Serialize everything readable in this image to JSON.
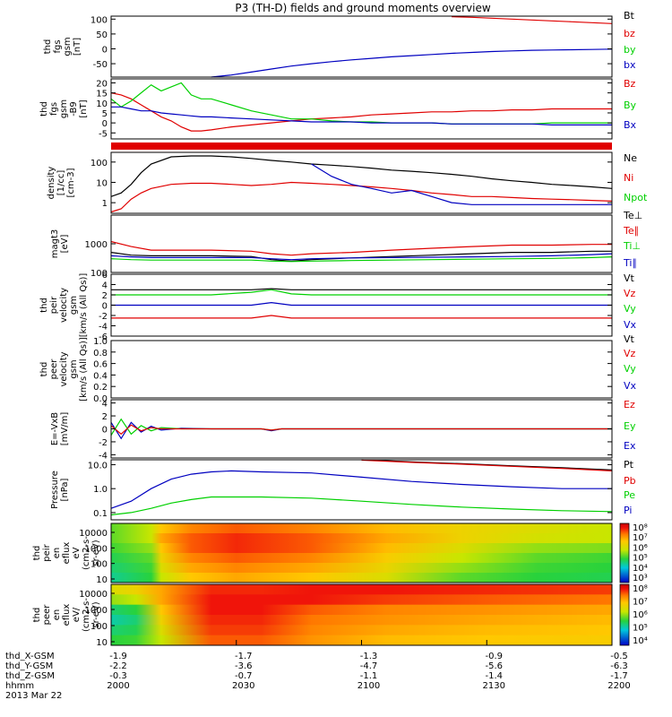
{
  "title": "P3 (TH-D) fields and ground moments overview",
  "colors": {
    "black": "#000000",
    "red": "#e00000",
    "green": "#00d000",
    "blue": "#0000c0"
  },
  "chart_data": [
    {
      "type": "line",
      "ylabel": [
        "thd",
        "fgs",
        "gsm",
        "[nT]"
      ],
      "yticks": [
        "100",
        "50",
        "0",
        "-50"
      ],
      "ylim": [
        -95,
        110
      ],
      "ytick_values": [
        100,
        50,
        0,
        -50
      ],
      "x": [
        0,
        8,
        12,
        16,
        20,
        24,
        28,
        32,
        36,
        40,
        44,
        48,
        52,
        56,
        60,
        64,
        68,
        72,
        76,
        80,
        84,
        88,
        92,
        96,
        100
      ],
      "legend": [
        "Bt",
        "bz",
        "by",
        "bx"
      ],
      "series": [
        {
          "color": "red",
          "values": [
            null,
            null,
            null,
            null,
            null,
            null,
            null,
            null,
            null,
            null,
            null,
            null,
            null,
            null,
            null,
            null,
            108,
            106,
            103,
            100,
            97,
            94,
            91,
            88,
            85
          ]
        },
        {
          "color": "blue",
          "values": [
            null,
            null,
            null,
            null,
            -95,
            -88,
            -78,
            -68,
            -58,
            -50,
            -43,
            -37,
            -32,
            -27,
            -23,
            -19,
            -15,
            -12,
            -9,
            -7,
            -5,
            -4,
            -3,
            -2,
            -1
          ]
        }
      ]
    },
    {
      "type": "line",
      "ylabel": [
        "thd",
        "fgs",
        "gsm",
        "-B9",
        "[nT]"
      ],
      "yticks": [
        "20",
        "15",
        "10",
        "5",
        "0",
        "-5"
      ],
      "ylim": [
        -8,
        22
      ],
      "ytick_values": [
        20,
        15,
        10,
        5,
        0,
        -5
      ],
      "x": [
        0,
        2,
        4,
        6,
        8,
        10,
        12,
        14,
        16,
        18,
        20,
        24,
        28,
        32,
        36,
        40,
        44,
        48,
        52,
        56,
        60,
        64,
        68,
        72,
        76,
        80,
        84,
        88,
        92,
        96,
        100
      ],
      "legend": [
        "Bz",
        "By",
        "Bx"
      ],
      "series": [
        {
          "color": "red",
          "values": [
            15,
            14,
            12,
            9,
            6,
            3,
            1,
            -2,
            -4,
            -4,
            -3.5,
            -2,
            -1,
            0,
            1,
            2,
            2.5,
            3,
            4,
            4.5,
            5,
            5.5,
            5.5,
            6,
            6,
            6.5,
            6.5,
            7,
            7,
            7,
            7
          ]
        },
        {
          "color": "green",
          "values": [
            12,
            8,
            11,
            15,
            19,
            16,
            18,
            20,
            14,
            12,
            12,
            9,
            6,
            4,
            2,
            2,
            1,
            0.5,
            0.5,
            0,
            0,
            0,
            -0.5,
            -0.5,
            -0.5,
            -0.5,
            -0.5,
            0,
            0,
            0,
            0
          ]
        },
        {
          "color": "blue",
          "values": [
            8,
            8,
            7,
            6,
            6,
            5,
            4.5,
            4,
            3.5,
            3,
            3,
            2.5,
            2,
            1.5,
            1,
            0.5,
            0.5,
            0.5,
            0,
            0,
            0,
            0,
            -0.5,
            -0.5,
            -0.5,
            -0.5,
            -0.5,
            -1,
            -1,
            -1,
            -1
          ]
        }
      ]
    },
    {
      "type": "line",
      "ylabel": [
        "density",
        "[1/cc]",
        "[cm-3]"
      ],
      "yticks": [
        "100",
        "10",
        "1"
      ],
      "scale": "log",
      "ylim": [
        0.3,
        300
      ],
      "ytick_values": [
        100,
        10,
        1
      ],
      "x": [
        0,
        2,
        4,
        6,
        8,
        12,
        16,
        20,
        24,
        28,
        32,
        36,
        40,
        44,
        48,
        52,
        56,
        60,
        64,
        68,
        72,
        76,
        80,
        84,
        88,
        92,
        96,
        100
      ],
      "legend": [
        "Ne",
        "Ni",
        "Npot"
      ],
      "series": [
        {
          "color": "black",
          "values": [
            2,
            3,
            8,
            30,
            80,
            180,
            200,
            200,
            180,
            150,
            120,
            100,
            80,
            70,
            60,
            50,
            40,
            35,
            30,
            25,
            20,
            15,
            12,
            10,
            8,
            7,
            6,
            5
          ]
        },
        {
          "color": "red",
          "values": [
            0.35,
            0.5,
            1.5,
            3,
            5,
            8,
            9,
            9,
            8,
            7,
            8,
            10,
            9,
            8,
            7,
            6,
            5,
            4,
            3,
            2.5,
            2,
            2,
            1.8,
            1.6,
            1.5,
            1.4,
            1.3,
            1.2
          ]
        },
        {
          "color": "blue",
          "values": [
            null,
            null,
            null,
            null,
            null,
            null,
            null,
            null,
            null,
            null,
            null,
            null,
            80,
            20,
            8,
            5,
            3,
            4,
            2,
            1,
            0.8,
            0.8,
            0.8,
            0.8,
            0.8,
            0.8,
            0.8,
            0.8
          ]
        }
      ]
    },
    {
      "type": "line",
      "ylabel": [
        "magt3",
        "[eV]"
      ],
      "yticks": [
        "1000",
        "100"
      ],
      "scale": "log",
      "ylim": [
        100,
        10000
      ],
      "ytick_values": [
        1000,
        100
      ],
      "x": [
        0,
        4,
        8,
        12,
        20,
        28,
        32,
        36,
        40,
        48,
        56,
        64,
        72,
        80,
        88,
        96,
        100
      ],
      "legend": [
        "Te⊥",
        "Te∥",
        "Ti⊥",
        "Ti∥"
      ],
      "series": [
        {
          "color": "red",
          "values": [
            1200,
            800,
            600,
            600,
            600,
            550,
            450,
            400,
            450,
            500,
            600,
            700,
            800,
            900,
            900,
            950,
            950
          ]
        },
        {
          "color": "black",
          "values": [
            500,
            400,
            380,
            380,
            380,
            360,
            280,
            250,
            280,
            320,
            360,
            400,
            450,
            500,
            500,
            550,
            550
          ]
        },
        {
          "color": "blue",
          "values": [
            380,
            350,
            330,
            330,
            330,
            330,
            300,
            280,
            300,
            320,
            330,
            340,
            350,
            360,
            380,
            420,
            450
          ]
        },
        {
          "color": "green",
          "values": [
            300,
            280,
            270,
            270,
            270,
            270,
            250,
            240,
            250,
            260,
            270,
            280,
            290,
            300,
            310,
            330,
            350
          ]
        }
      ]
    },
    {
      "type": "line",
      "ylabel": [
        "thd",
        "peir",
        "velocity",
        "gsm",
        "[km/s (All Qs)]"
      ],
      "yticks": [
        "6",
        "4",
        "2",
        "0",
        "-2",
        "-4",
        "-6"
      ],
      "ylim": [
        -6,
        6
      ],
      "ytick_values": [
        6,
        4,
        2,
        0,
        -2,
        -4,
        -6
      ],
      "x": [
        0,
        10,
        20,
        28,
        32,
        36,
        40,
        50,
        60,
        70,
        80,
        90,
        100
      ],
      "legend": [
        "Vt",
        "Vz",
        "Vy",
        "Vx"
      ],
      "series": [
        {
          "color": "black",
          "values": [
            3,
            3,
            3,
            3,
            3.2,
            3,
            3,
            3,
            3,
            3,
            3,
            3,
            3
          ]
        },
        {
          "color": "green",
          "values": [
            2,
            2,
            2,
            2.5,
            3,
            2.2,
            2,
            2,
            2,
            2,
            2,
            2,
            2
          ]
        },
        {
          "color": "blue",
          "values": [
            0,
            0,
            0,
            0,
            0.5,
            0,
            0,
            0,
            0,
            0,
            0,
            0,
            0
          ]
        },
        {
          "color": "red",
          "values": [
            -2.5,
            -2.5,
            -2.5,
            -2.5,
            -2,
            -2.5,
            -2.5,
            -2.5,
            -2.5,
            -2.5,
            -2.5,
            -2.5,
            -2.5
          ]
        }
      ]
    },
    {
      "type": "line",
      "ylabel": [
        "thd",
        "peer",
        "velocity",
        "gsm",
        "[km/s (All Qs)]"
      ],
      "yticks": [
        "1.0",
        "0.8",
        "0.6",
        "0.4",
        "0.2",
        "0.0"
      ],
      "ylim": [
        0,
        1
      ],
      "ytick_values": [
        1,
        0.8,
        0.6,
        0.4,
        0.2,
        0
      ],
      "x": [],
      "legend": [
        "Vt",
        "Vz",
        "Vy",
        "Vx"
      ],
      "series": []
    },
    {
      "type": "line",
      "ylabel": [
        "E=-VxB",
        "[mV/m]"
      ],
      "yticks": [
        "4",
        "2",
        "0",
        "-2",
        "-4"
      ],
      "ylim": [
        -4.5,
        4.5
      ],
      "ytick_values": [
        4,
        2,
        0,
        -2,
        -4
      ],
      "x": [
        0,
        2,
        4,
        6,
        8,
        10,
        14,
        20,
        30,
        32,
        34,
        40,
        60,
        80,
        100
      ],
      "legend": [
        "Ez",
        "Ey",
        "Ex"
      ],
      "series": [
        {
          "color": "blue",
          "values": [
            1,
            -1.5,
            1,
            -0.5,
            0.4,
            -0.2,
            0.1,
            0,
            0,
            -0.3,
            0,
            0,
            0,
            0,
            0
          ]
        },
        {
          "color": "green",
          "values": [
            -1,
            1.5,
            -0.8,
            0.5,
            -0.3,
            0.2,
            0,
            0,
            0,
            -0.2,
            0,
            0,
            0,
            0,
            0
          ]
        },
        {
          "color": "red",
          "values": [
            0.5,
            -0.8,
            0.6,
            -0.3,
            0.2,
            0,
            0,
            0,
            0,
            -0.2,
            0,
            0,
            0,
            0,
            0
          ]
        }
      ]
    },
    {
      "type": "line",
      "ylabel": [
        "Pressure",
        "[nPa]"
      ],
      "yticks": [
        "10.0",
        "1.0",
        "0.1"
      ],
      "scale": "log",
      "ylim": [
        0.05,
        16
      ],
      "ytick_values": [
        10,
        1,
        0.1
      ],
      "x": [
        0,
        4,
        8,
        12,
        16,
        20,
        24,
        30,
        40,
        50,
        60,
        70,
        80,
        90,
        100
      ],
      "legend": [
        "Pt",
        "Pb",
        "Pe",
        "Pi"
      ],
      "series": [
        {
          "color": "black",
          "values": [
            null,
            null,
            null,
            null,
            null,
            null,
            null,
            null,
            null,
            16,
            13,
            11,
            9,
            7.5,
            6
          ]
        },
        {
          "color": "red",
          "values": [
            null,
            null,
            null,
            null,
            null,
            null,
            null,
            null,
            null,
            15.5,
            12.5,
            10.5,
            8.5,
            7,
            5.5
          ]
        },
        {
          "color": "blue",
          "values": [
            0.15,
            0.3,
            1,
            2.5,
            4,
            5,
            5.5,
            5,
            4.5,
            3,
            2,
            1.5,
            1.2,
            1,
            1
          ]
        },
        {
          "color": "green",
          "values": [
            0.08,
            0.1,
            0.15,
            0.25,
            0.35,
            0.45,
            0.45,
            0.45,
            0.4,
            0.3,
            0.22,
            0.17,
            0.14,
            0.12,
            0.11
          ]
        }
      ]
    },
    {
      "type": "heatmap",
      "ylabel": [
        "thd",
        "peir",
        "en",
        "eflux",
        "eV",
        "(cm2-s-",
        "sr-eV)"
      ],
      "yticks": [
        "10000",
        "1000",
        "100",
        "10"
      ],
      "cbar_ticks": [
        "10⁸",
        "10⁷",
        "10⁶",
        "10⁵",
        "10⁴",
        "10³"
      ],
      "columns": [
        {
          "x": 0,
          "vals": [
            0.45,
            0.45,
            0.42,
            0.38,
            0.35,
            0.32
          ]
        },
        {
          "x": 8,
          "vals": [
            0.55,
            0.55,
            0.5,
            0.45,
            0.42,
            0.4
          ]
        },
        {
          "x": 10,
          "vals": [
            0.7,
            0.75,
            0.7,
            0.65,
            0.6,
            0.55
          ]
        },
        {
          "x": 16,
          "vals": [
            0.8,
            0.85,
            0.85,
            0.8,
            0.75,
            0.7
          ]
        },
        {
          "x": 25,
          "vals": [
            0.85,
            0.9,
            0.9,
            0.85,
            0.8,
            0.75
          ]
        },
        {
          "x": 40,
          "vals": [
            0.8,
            0.85,
            0.85,
            0.8,
            0.75,
            0.7
          ]
        },
        {
          "x": 55,
          "vals": [
            0.72,
            0.75,
            0.72,
            0.68,
            0.64,
            0.6
          ]
        },
        {
          "x": 70,
          "vals": [
            0.65,
            0.65,
            0.6,
            0.55,
            0.5,
            0.45
          ]
        },
        {
          "x": 85,
          "vals": [
            0.6,
            0.58,
            0.5,
            0.45,
            0.42,
            0.4
          ]
        },
        {
          "x": 100,
          "vals": [
            0.55,
            0.55,
            0.48,
            0.42,
            0.4,
            0.38
          ]
        }
      ]
    },
    {
      "type": "heatmap",
      "ylabel": [
        "thd",
        "peer",
        "en",
        "eflux",
        "eV/",
        "(cm2-s-",
        "sr-eV)"
      ],
      "yticks": [
        "10000",
        "1000",
        "100",
        "10"
      ],
      "cbar_ticks": [
        "10⁸",
        "10⁷",
        "10⁶",
        "10⁵",
        "10⁴"
      ],
      "columns": [
        {
          "x": 0,
          "vals": [
            0.6,
            0.5,
            0.35,
            0.3,
            0.35,
            0.4
          ]
        },
        {
          "x": 5,
          "vals": [
            0.65,
            0.55,
            0.4,
            0.35,
            0.38,
            0.42
          ]
        },
        {
          "x": 10,
          "vals": [
            0.75,
            0.75,
            0.7,
            0.65,
            0.6,
            0.55
          ]
        },
        {
          "x": 20,
          "vals": [
            0.9,
            0.92,
            0.92,
            0.9,
            0.88,
            0.85
          ]
        },
        {
          "x": 30,
          "vals": [
            0.9,
            0.92,
            0.92,
            0.9,
            0.88,
            0.85
          ]
        },
        {
          "x": 40,
          "vals": [
            0.92,
            0.92,
            0.85,
            0.82,
            0.8,
            0.78
          ]
        },
        {
          "x": 55,
          "vals": [
            0.92,
            0.88,
            0.8,
            0.78,
            0.75,
            0.72
          ]
        },
        {
          "x": 75,
          "vals": [
            0.9,
            0.85,
            0.78,
            0.75,
            0.72,
            0.7
          ]
        },
        {
          "x": 100,
          "vals": [
            0.88,
            0.82,
            0.75,
            0.72,
            0.7,
            0.68
          ]
        }
      ]
    }
  ],
  "xaxis": {
    "rows": [
      {
        "label": "thd_X-GSM",
        "values": [
          "-1.9",
          "-1.7",
          "-1.3",
          "-0.9",
          "-0.5"
        ]
      },
      {
        "label": "thd_Y-GSM",
        "values": [
          "-2.2",
          "-3.6",
          "-4.7",
          "-5.6",
          "-6.3"
        ]
      },
      {
        "label": "thd_Z-GSM",
        "values": [
          "-0.3",
          "-0.7",
          "-1.1",
          "-1.4",
          "-1.7"
        ]
      },
      {
        "label": "hhmm",
        "values": [
          "2000",
          "2030",
          "2100",
          "2130",
          "2200"
        ]
      }
    ],
    "date": "2013 Mar 22"
  }
}
